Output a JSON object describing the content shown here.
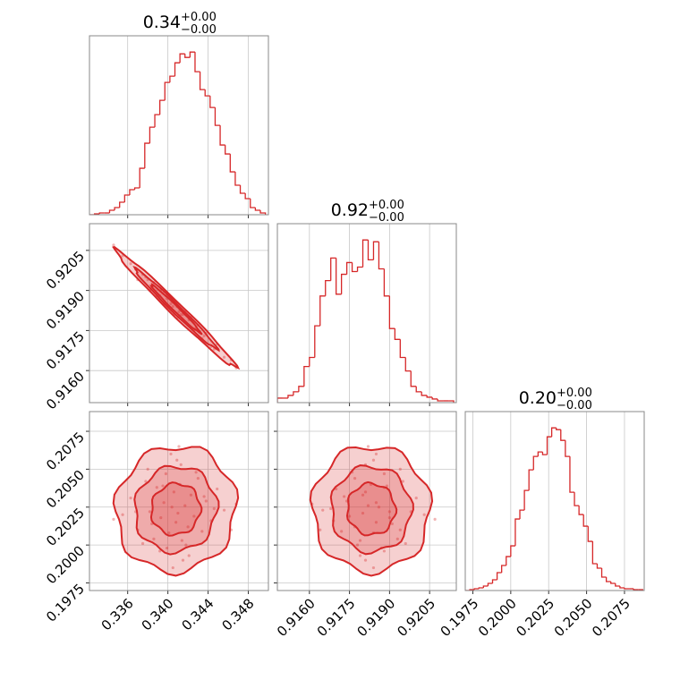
{
  "chart_data": {
    "type": "corner",
    "color": "#d62728",
    "grid": true,
    "parameters": [
      {
        "title": {
          "value": "0.34",
          "upper": "+0.00",
          "lower": "−0.00"
        },
        "lim": [
          0.3322,
          0.35
        ],
        "ticks": [
          0.336,
          {
            "value": 0.34,
            "label": "0.340"
          },
          0.344,
          0.348
        ],
        "bins": [
          0.3322,
          0.3327,
          0.3332,
          0.3337,
          0.3342,
          0.3347,
          0.3352,
          0.3357,
          0.3362,
          0.3367,
          0.3372,
          0.3377,
          0.3382,
          0.3387,
          0.3392,
          0.3397,
          0.3402,
          0.3407,
          0.3412,
          0.3417,
          0.3422,
          0.3427,
          0.3432,
          0.3437,
          0.3442,
          0.3447,
          0.3452,
          0.3457,
          0.3462,
          0.3467,
          0.3472,
          0.3477,
          0.3482,
          0.3487,
          0.3492,
          0.3497
        ],
        "counts": [
          0,
          1,
          2,
          2,
          5,
          8,
          14,
          22,
          28,
          30,
          52,
          80,
          98,
          112,
          128,
          148,
          155,
          170,
          180,
          176,
          182,
          160,
          140,
          133,
          120,
          100,
          78,
          68,
          48,
          33,
          24,
          18,
          8,
          5,
          2
        ],
        "samples": [
          0.3363,
          0.337,
          0.3378,
          0.3382,
          0.3386,
          0.3389,
          0.3393,
          0.3396,
          0.3398,
          0.3401,
          0.3404,
          0.3406,
          0.3408,
          0.341,
          0.3412,
          0.3414,
          0.3417,
          0.342,
          0.3423,
          0.3426,
          0.343,
          0.3434,
          0.3438,
          0.3443,
          0.3449,
          0.3456,
          0.3355,
          0.3375,
          0.338,
          0.3399,
          0.3409,
          0.3418,
          0.3428,
          0.3392,
          0.3413,
          0.3421,
          0.3384,
          0.3436,
          0.3403,
          0.3415,
          0.3446,
          0.3368,
          0.3468,
          0.3346,
          0.3411,
          0.3405,
          0.3463,
          0.3395
        ]
      },
      {
        "title": {
          "value": "0.92",
          "upper": "+0.00",
          "lower": "−0.00"
        },
        "lim": [
          0.9148,
          0.9215
        ],
        "ticks": [
          {
            "value": 0.916,
            "label": "0.9160"
          },
          0.9175,
          {
            "value": 0.919,
            "label": "0.9190"
          },
          0.9205
        ],
        "bins": [
          0.9148,
          0.915,
          0.9152,
          0.9154,
          0.9156,
          0.9158,
          0.916,
          0.9162,
          0.9164,
          0.9166,
          0.9168,
          0.917,
          0.9172,
          0.9174,
          0.9176,
          0.9178,
          0.918,
          0.9182,
          0.9184,
          0.9186,
          0.9188,
          0.919,
          0.9192,
          0.9194,
          0.9196,
          0.9198,
          0.92,
          0.9202,
          0.9204,
          0.9206,
          0.9208,
          0.921,
          0.9212,
          0.9214
        ],
        "counts": [
          5,
          5,
          8,
          12,
          18,
          40,
          50,
          85,
          118,
          135,
          160,
          120,
          142,
          155,
          145,
          150,
          180,
          158,
          178,
          148,
          118,
          82,
          70,
          50,
          35,
          18,
          12,
          8,
          6,
          4,
          2,
          2,
          2
        ],
        "samples": [
          0.92,
          0.9194,
          0.9195,
          0.919,
          0.9193,
          0.9188,
          0.919,
          0.9185,
          0.9188,
          0.9184,
          0.9186,
          0.9181,
          0.9185,
          0.918,
          0.9183,
          0.9179,
          0.9182,
          0.9177,
          0.918,
          0.9175,
          0.9177,
          0.9172,
          0.9174,
          0.9169,
          0.917,
          0.9165,
          0.9203,
          0.9196,
          0.9194,
          0.9187,
          0.9184,
          0.9178,
          0.9176,
          0.9188,
          0.9181,
          0.9179,
          0.9191,
          0.9173,
          0.9185,
          0.9181,
          0.9168,
          0.9198,
          0.9161,
          0.9207,
          0.9182,
          0.9184,
          0.9164,
          0.9189
        ]
      },
      {
        "title": {
          "value": "0.20",
          "upper": "+0.00",
          "lower": "−0.00"
        },
        "lim": [
          0.197,
          0.2088
        ],
        "ticks": [
          0.1975,
          {
            "value": 0.2,
            "label": "0.2000"
          },
          0.2025,
          {
            "value": 0.205,
            "label": "0.2050"
          },
          0.2075
        ],
        "bins": [
          0.197,
          0.1973,
          0.1976,
          0.1979,
          0.1982,
          0.1985,
          0.1988,
          0.1991,
          0.1994,
          0.1997,
          0.2,
          0.2003,
          0.2006,
          0.2009,
          0.2012,
          0.2015,
          0.2018,
          0.2021,
          0.2024,
          0.2027,
          0.203,
          0.2033,
          0.2036,
          0.2039,
          0.2042,
          0.2045,
          0.2048,
          0.2051,
          0.2054,
          0.2057,
          0.206,
          0.2063,
          0.2066,
          0.2069,
          0.2072,
          0.2075,
          0.2078,
          0.2081,
          0.2084,
          0.2087
        ],
        "counts": [
          0,
          1,
          2,
          3,
          5,
          8,
          12,
          20,
          28,
          38,
          50,
          80,
          90,
          112,
          135,
          150,
          155,
          152,
          172,
          182,
          180,
          168,
          150,
          110,
          95,
          85,
          72,
          55,
          30,
          25,
          15,
          10,
          8,
          5,
          3,
          2,
          2,
          1,
          1
        ],
        "samples": [
          0.2031,
          0.201,
          0.2042,
          0.2022,
          0.2004,
          0.2038,
          0.2018,
          0.2028,
          0.2047,
          0.2008,
          0.2025,
          0.2035,
          0.2015,
          0.2021,
          0.204,
          0.2003,
          0.2026,
          0.2012,
          0.2033,
          0.2019,
          0.2044,
          0.2009,
          0.2029,
          0.2016,
          0.2037,
          0.2023,
          0.202,
          0.2001,
          0.205,
          0.1998,
          0.2056,
          0.2,
          0.2048,
          0.1996,
          0.2053,
          0.1993,
          0.2014,
          0.2032,
          0.206,
          0.199,
          0.2024,
          0.2022,
          0.2027,
          0.2017,
          0.2065,
          0.1985,
          0.201,
          0.2039
        ]
      }
    ]
  }
}
